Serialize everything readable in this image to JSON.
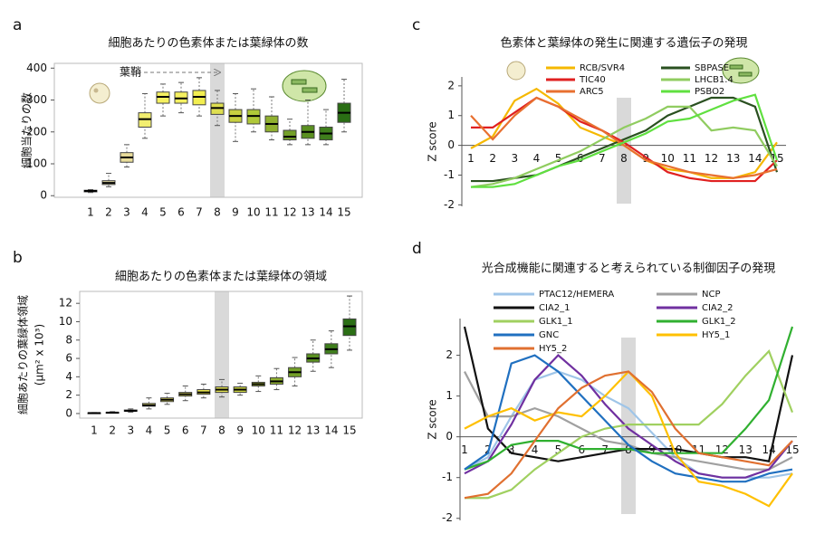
{
  "chart_data": [
    {
      "type": "box",
      "label": "a",
      "title": "細胞あたりの色素体または葉緑体の数",
      "ylabel": "細胞当たりの数",
      "annotation": "葉鞘",
      "categories": [
        "1",
        "2",
        "3",
        "4",
        "5",
        "6",
        "7",
        "8",
        "9",
        "10",
        "11",
        "12",
        "13",
        "14",
        "15"
      ],
      "whisker_low": [
        10,
        28,
        90,
        180,
        250,
        260,
        250,
        220,
        170,
        200,
        175,
        160,
        160,
        160,
        200
      ],
      "q1": [
        12,
        35,
        105,
        215,
        290,
        290,
        285,
        255,
        230,
        225,
        200,
        175,
        180,
        175,
        230
      ],
      "median": [
        15,
        40,
        120,
        240,
        310,
        305,
        310,
        275,
        250,
        250,
        225,
        185,
        200,
        195,
        260
      ],
      "q3": [
        17,
        47,
        135,
        260,
        325,
        325,
        330,
        290,
        270,
        270,
        250,
        205,
        220,
        215,
        290
      ],
      "whisker_high": [
        19,
        70,
        160,
        320,
        350,
        355,
        370,
        330,
        320,
        335,
        310,
        240,
        300,
        270,
        365
      ],
      "colors": [
        "#d8cc90",
        "#e0d8a0",
        "#e8dc9a",
        "#f2ee70",
        "#f5f060",
        "#f5f060",
        "#f2ee50",
        "#dede50",
        "#c8d040",
        "#b0c838",
        "#90b030",
        "#74a028",
        "#5a9020",
        "#3f7e1c",
        "#2a6e14"
      ],
      "highlight": "8",
      "ylim": [
        -5,
        415
      ],
      "yticks": [
        0,
        100,
        200,
        300,
        400
      ]
    },
    {
      "type": "box",
      "label": "b",
      "title": "細胞あたりの色素体または葉緑体の領域",
      "ylabel": "細胞あたりの葉緑体領域",
      "ylabel_unit": "(μm² x 10³)",
      "categories": [
        "1",
        "2",
        "3",
        "4",
        "5",
        "6",
        "7",
        "8",
        "9",
        "10",
        "11",
        "12",
        "13",
        "14",
        "15"
      ],
      "whisker_low": [
        0,
        0.05,
        0.15,
        0.5,
        1.0,
        1.4,
        1.7,
        1.8,
        2.0,
        2.4,
        2.6,
        3.0,
        4.6,
        5.0,
        6.9
      ],
      "q1": [
        0.02,
        0.08,
        0.25,
        0.8,
        1.3,
        1.9,
        2.1,
        2.3,
        2.3,
        3.0,
        3.2,
        4.0,
        5.6,
        6.5,
        8.5
      ],
      "median": [
        0.05,
        0.1,
        0.3,
        0.9,
        1.5,
        2.1,
        2.3,
        2.6,
        2.6,
        3.2,
        3.5,
        4.5,
        6.0,
        7.0,
        9.5
      ],
      "q3": [
        0.08,
        0.13,
        0.38,
        1.1,
        1.7,
        2.3,
        2.6,
        2.9,
        2.9,
        3.4,
        3.9,
        5.0,
        6.5,
        7.6,
        10.3
      ],
      "whisker_high": [
        0.1,
        0.2,
        0.5,
        1.7,
        2.2,
        3.0,
        3.2,
        3.7,
        3.3,
        4.1,
        4.9,
        6.1,
        8.0,
        9.0,
        12.8
      ],
      "colors": [
        "#d8cc90",
        "#e0d8a0",
        "#e8dc9a",
        "#f2ee70",
        "#f5f060",
        "#f5f060",
        "#f2ee50",
        "#dede50",
        "#c8d040",
        "#b0c838",
        "#90b030",
        "#74a028",
        "#5a9020",
        "#3f7e1c",
        "#2a6e14"
      ],
      "highlight": "8",
      "ylim": [
        -0.5,
        13.3
      ],
      "yticks": [
        0,
        2,
        4,
        6,
        8,
        10,
        12
      ]
    },
    {
      "type": "line",
      "label": "c",
      "title": "色素体と葉緑体の発生に関連する遺伝子の発現",
      "ylabel": "Z score",
      "categories": [
        "1",
        "2",
        "3",
        "4",
        "5",
        "6",
        "7",
        "8",
        "9",
        "10",
        "11",
        "12",
        "13",
        "14",
        "15"
      ],
      "series": [
        {
          "name": "RCB/SVR4",
          "color": "#f5b800",
          "values": [
            -0.1,
            0.3,
            1.5,
            1.9,
            1.4,
            0.6,
            0.3,
            0.0,
            -0.5,
            -0.8,
            -0.9,
            -1.1,
            -1.1,
            -0.9,
            0.1
          ]
        },
        {
          "name": "SBPASE",
          "color": "#2a5020",
          "values": [
            -1.2,
            -1.2,
            -1.1,
            -1.0,
            -0.7,
            -0.4,
            -0.1,
            0.2,
            0.5,
            1.0,
            1.3,
            1.6,
            1.6,
            1.3,
            -0.9
          ]
        },
        {
          "name": "TIC40",
          "color": "#e02020",
          "values": [
            0.6,
            0.6,
            1.1,
            1.6,
            1.3,
            0.8,
            0.5,
            0.1,
            -0.4,
            -0.9,
            -1.1,
            -1.2,
            -1.2,
            -1.2,
            -0.5
          ]
        },
        {
          "name": "LHCB1.4",
          "color": "#90cc60",
          "values": [
            -1.4,
            -1.3,
            -1.1,
            -0.8,
            -0.5,
            -0.2,
            0.2,
            0.6,
            0.9,
            1.3,
            1.3,
            0.5,
            0.6,
            0.5,
            -0.7
          ]
        },
        {
          "name": "ARC5",
          "color": "#e87030",
          "values": [
            1.0,
            0.2,
            1.0,
            1.6,
            1.3,
            0.9,
            0.5,
            0.0,
            -0.5,
            -0.7,
            -0.9,
            -1.0,
            -1.1,
            -1.0,
            -0.8
          ]
        },
        {
          "name": "PSBO2",
          "color": "#60e040",
          "values": [
            -1.4,
            -1.4,
            -1.3,
            -1.0,
            -0.7,
            -0.5,
            -0.2,
            0.1,
            0.4,
            0.8,
            0.9,
            1.2,
            1.5,
            1.7,
            -0.5
          ]
        }
      ],
      "highlight": "8",
      "ylim": [
        -2.05,
        2.3
      ],
      "yticks": [
        -2,
        -1,
        0,
        1,
        2
      ]
    },
    {
      "type": "line",
      "label": "d",
      "title": "光合成機能に関連すると考えられている制御因子の発現",
      "ylabel": "Z score",
      "categories": [
        "1",
        "2",
        "3",
        "4",
        "5",
        "6",
        "7",
        "8",
        "9",
        "10",
        "11",
        "12",
        "13",
        "14",
        "15"
      ],
      "series": [
        {
          "name": "PTAC12/HEMERA",
          "color": "#9fc5e8",
          "values": [
            -0.8,
            -0.5,
            0.5,
            1.4,
            1.6,
            1.4,
            1.0,
            0.7,
            0.1,
            -0.5,
            -0.9,
            -1.0,
            -1.0,
            -1.0,
            -0.9
          ]
        },
        {
          "name": "NCP",
          "color": "#a0a0a0",
          "values": [
            1.6,
            0.5,
            0.5,
            0.7,
            0.5,
            0.2,
            -0.1,
            -0.2,
            -0.4,
            -0.5,
            -0.6,
            -0.7,
            -0.8,
            -0.8,
            -0.5
          ]
        },
        {
          "name": "CIA2_1",
          "color": "#111111",
          "values": [
            2.7,
            0.2,
            -0.4,
            -0.5,
            -0.6,
            -0.5,
            -0.4,
            -0.3,
            -0.3,
            -0.3,
            -0.4,
            -0.5,
            -0.5,
            -0.6,
            2.0
          ]
        },
        {
          "name": "CIA2_2",
          "color": "#7030a0",
          "values": [
            -0.9,
            -0.6,
            0.3,
            1.4,
            2.0,
            1.5,
            0.8,
            0.2,
            -0.2,
            -0.6,
            -0.9,
            -1.0,
            -1.0,
            -0.8,
            -0.1
          ]
        },
        {
          "name": "GLK1_1",
          "color": "#a0d060",
          "values": [
            -1.5,
            -1.5,
            -1.3,
            -0.8,
            -0.4,
            0.0,
            0.2,
            0.3,
            0.3,
            0.3,
            0.3,
            0.8,
            1.5,
            2.1,
            0.6
          ]
        },
        {
          "name": "GLK1_2",
          "color": "#30b030",
          "values": [
            -0.8,
            -0.6,
            -0.2,
            -0.1,
            -0.1,
            -0.3,
            -0.3,
            -0.3,
            -0.4,
            -0.4,
            -0.4,
            -0.4,
            0.2,
            0.9,
            2.7
          ]
        },
        {
          "name": "GNC",
          "color": "#2070c0",
          "values": [
            -0.8,
            -0.4,
            1.8,
            2.0,
            1.6,
            1.0,
            0.4,
            -0.2,
            -0.6,
            -0.9,
            -1.0,
            -1.1,
            -1.1,
            -0.9,
            -0.8
          ]
        },
        {
          "name": "HY5_1",
          "color": "#ffc000",
          "values": [
            0.2,
            0.5,
            0.7,
            0.4,
            0.6,
            0.5,
            1.0,
            1.6,
            1.0,
            -0.4,
            -1.1,
            -1.2,
            -1.4,
            -1.7,
            -0.9
          ]
        },
        {
          "name": "HY5_2",
          "color": "#e07030",
          "values": [
            -1.5,
            -1.4,
            -0.9,
            -0.1,
            0.7,
            1.2,
            1.5,
            1.6,
            1.1,
            0.2,
            -0.4,
            -0.5,
            -0.6,
            -0.7,
            -0.1
          ]
        }
      ],
      "highlight": "8",
      "ylim": [
        -2.05,
        2.9
      ],
      "yticks": [
        -2,
        -1,
        0,
        1,
        2
      ]
    }
  ]
}
